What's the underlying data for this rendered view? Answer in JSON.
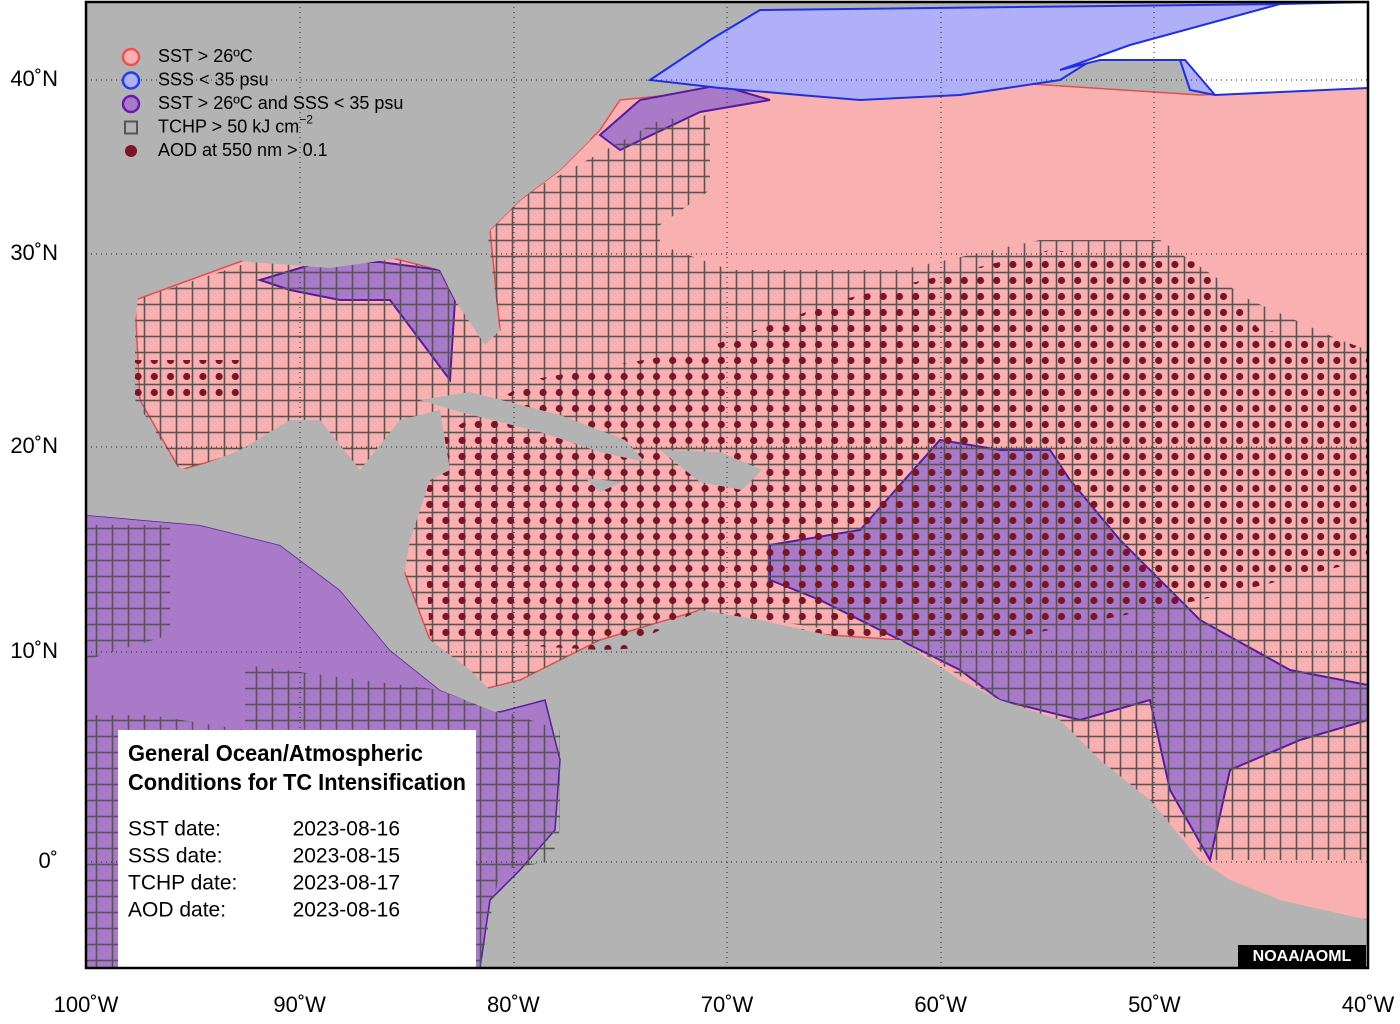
{
  "legend": {
    "items": [
      {
        "label": "SST > 26ºC"
      },
      {
        "label": "SSS < 35 psu"
      },
      {
        "label": "SST > 26ºC and SSS < 35 psu"
      },
      {
        "label": "TCHP > 50 kJ cm",
        "sup": "−2"
      },
      {
        "label": "AOD at 550 nm > 0.1"
      }
    ]
  },
  "info_box": {
    "title_lines": [
      "General Ocean/Atmospheric",
      "Conditions for TC Intensification"
    ],
    "dates": [
      {
        "label": "SST date:",
        "value": "2023-08-16"
      },
      {
        "label": "SSS date:",
        "value": "2023-08-15"
      },
      {
        "label": "TCHP date:",
        "value": "2023-08-17"
      },
      {
        "label": "AOD date:",
        "value": "2023-08-16"
      }
    ]
  },
  "x_axis_labels": [
    "100˚W",
    "90˚W",
    "80˚W",
    "70˚W",
    "60˚W",
    "50˚W",
    "40˚W"
  ],
  "y_axis_labels": [
    "40˚N",
    "30˚N",
    "20˚N",
    "10˚N",
    "0˚"
  ],
  "credit": "NOAA/AOML"
}
